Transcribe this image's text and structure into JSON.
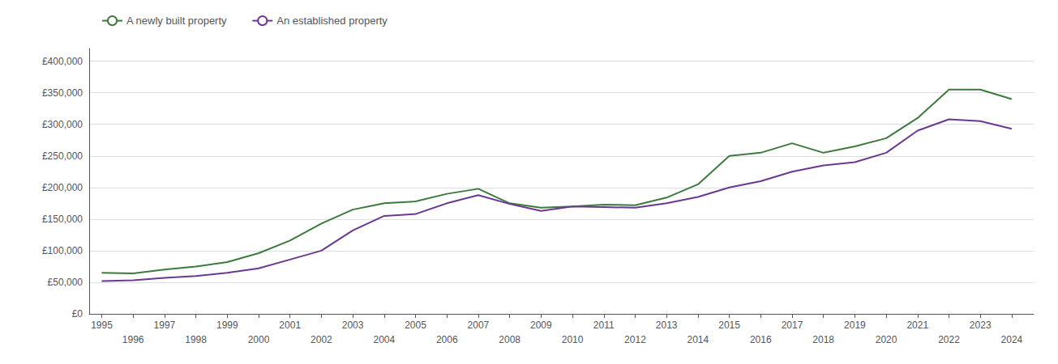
{
  "chart_data": {
    "type": "line",
    "x": [
      1995,
      1996,
      1997,
      1998,
      1999,
      2000,
      2001,
      2002,
      2003,
      2004,
      2005,
      2006,
      2007,
      2008,
      2009,
      2010,
      2011,
      2012,
      2013,
      2014,
      2015,
      2016,
      2017,
      2018,
      2019,
      2020,
      2021,
      2022,
      2023,
      2024
    ],
    "series": [
      {
        "name": "A newly built property",
        "color": "#3d7a3d",
        "values": [
          65000,
          64000,
          70000,
          75000,
          82000,
          96000,
          116000,
          143000,
          165000,
          175000,
          178000,
          190000,
          198000,
          175000,
          168000,
          170000,
          173000,
          172000,
          184000,
          205000,
          250000,
          255000,
          270000,
          255000,
          265000,
          278000,
          310000,
          355000,
          355000,
          340000
        ]
      },
      {
        "name": "An established property",
        "color": "#6b3891",
        "values": [
          52000,
          53000,
          57000,
          60000,
          65000,
          72000,
          86000,
          100000,
          132000,
          155000,
          158000,
          175000,
          188000,
          174000,
          163000,
          170000,
          169000,
          168000,
          175000,
          185000,
          200000,
          210000,
          225000,
          235000,
          240000,
          255000,
          290000,
          308000,
          305000,
          293000
        ]
      }
    ],
    "xlim": [
      1994.6,
      2024.7
    ],
    "xticks": [
      1995,
      1996,
      1997,
      1998,
      1999,
      2000,
      2001,
      2002,
      2003,
      2004,
      2005,
      2006,
      2007,
      2008,
      2009,
      2010,
      2011,
      2012,
      2013,
      2014,
      2015,
      2016,
      2017,
      2018,
      2019,
      2020,
      2021,
      2022,
      2023,
      2024
    ],
    "ylim": [
      0,
      420000
    ],
    "yticks": [
      {
        "value": 0,
        "label": "£0"
      },
      {
        "value": 50000,
        "label": "£50,000"
      },
      {
        "value": 100000,
        "label": "£100,000"
      },
      {
        "value": 150000,
        "label": "£150,000"
      },
      {
        "value": 200000,
        "label": "£200,000"
      },
      {
        "value": 250000,
        "label": "£250,000"
      },
      {
        "value": 300000,
        "label": "£300,000"
      },
      {
        "value": 350000,
        "label": "£350,000"
      },
      {
        "value": 400000,
        "label": "£400,000"
      }
    ],
    "grid": true,
    "legend": "top left"
  }
}
